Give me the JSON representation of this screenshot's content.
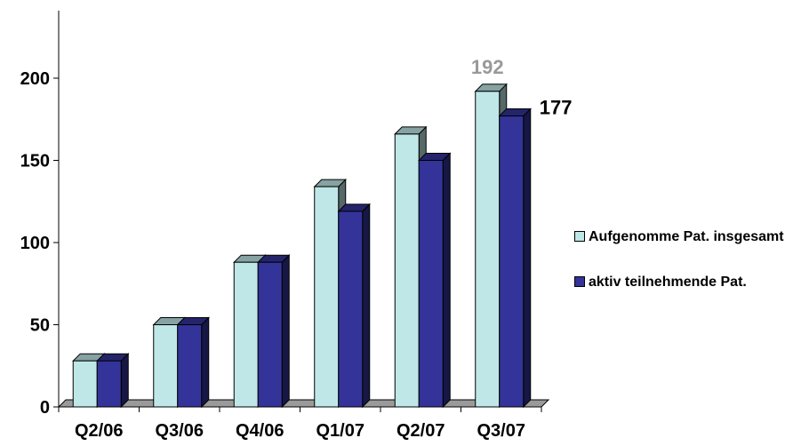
{
  "chart_data": {
    "type": "bar",
    "title": "",
    "xlabel": "",
    "ylabel": "",
    "categories": [
      "Q2/06",
      "Q3/06",
      "Q4/06",
      "Q1/07",
      "Q2/07",
      "Q3/07"
    ],
    "series": [
      {
        "name": "Aufgenomme Pat. insgesamt",
        "values": [
          28,
          50,
          88,
          134,
          166,
          192
        ],
        "color": "#bfe7e7"
      },
      {
        "name": "aktiv teilnehmende Pat.",
        "values": [
          28,
          50,
          88,
          119,
          150,
          177
        ],
        "color": "#333399"
      }
    ],
    "ylim": [
      0,
      230
    ],
    "yticks": [
      0,
      50,
      100,
      150,
      200
    ],
    "grid": false,
    "legend_position": "right",
    "three_d": true,
    "data_labels": [
      {
        "series": 0,
        "category": "Q3/07",
        "text": "192",
        "color": "#999999"
      },
      {
        "series": 1,
        "category": "Q3/07",
        "text": "177",
        "color": "#000000"
      }
    ]
  }
}
